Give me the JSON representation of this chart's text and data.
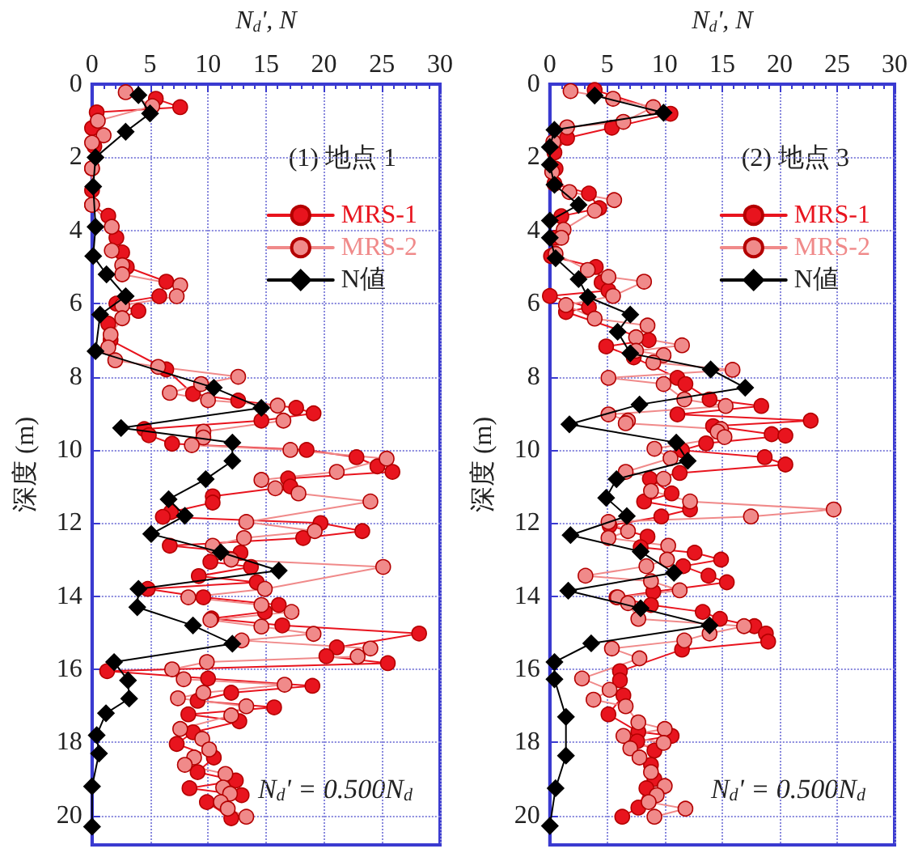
{
  "chart_data": [
    {
      "type": "line",
      "xlabel": "N$_{d}$', N",
      "ylabel": "深度 (m)",
      "legend_title": "(1) 地点 1",
      "annotations": [
        "N$_{d}$' = 0.500N$_{d}$"
      ],
      "xlim": [
        0,
        30
      ],
      "xticks": [
        0,
        5,
        10,
        15,
        20,
        25,
        30
      ],
      "ylim": [
        20.8,
        0
      ],
      "yticks": [
        0,
        2,
        4,
        6,
        8,
        10,
        12,
        14,
        16,
        18,
        20
      ],
      "grid": true,
      "legend": "top right",
      "line_style": "solid",
      "series": [
        {
          "name": "MRS-1",
          "color": "#e8141e",
          "marker": "circle",
          "x": [
            5.5,
            7.6,
            0.4,
            0,
            0.2,
            0,
            0,
            0,
            1.4,
            2.1,
            2.6,
            3.0,
            6.4,
            5.8,
            2.1,
            4.0,
            1.4,
            1.6,
            6.4,
            8.7,
            12.6,
            17.6,
            19.1,
            14.6,
            4.5,
            4.9,
            6.9,
            18.5,
            22.8,
            24.6,
            25.9,
            16.9,
            17.1,
            10.4,
            10.4,
            6.8,
            6.1,
            19.7,
            23.3,
            18.2,
            6.7,
            12.8,
            10.2,
            13.7,
            9.2,
            14.2,
            4.8,
            9.6,
            16.1,
            14.9,
            10.3,
            16.4,
            28.2,
            21.1,
            20.2,
            25.5,
            1.3,
            10.0,
            19.0,
            12.0,
            9.1,
            15.7,
            8.3,
            12.7,
            8.7,
            7.3,
            10.5,
            9.1,
            12.4,
            8.4,
            12.9,
            9.9,
            12.0
          ],
          "values": [
            0.4,
            0.63,
            0.77,
            1.2,
            1.7,
            2.3,
            2.9,
            3.3,
            3.6,
            4.2,
            4.6,
            5.0,
            5.4,
            5.8,
            6.0,
            6.2,
            6.55,
            7.0,
            7.8,
            8.47,
            8.65,
            8.85,
            9.0,
            9.2,
            9.43,
            9.6,
            9.83,
            10.0,
            10.2,
            10.45,
            10.6,
            10.78,
            11.0,
            11.27,
            11.44,
            11.7,
            11.83,
            12.0,
            12.22,
            12.41,
            12.62,
            12.81,
            13.06,
            13.2,
            13.45,
            13.62,
            13.8,
            14.03,
            14.24,
            14.43,
            14.61,
            14.8,
            15.02,
            15.4,
            15.64,
            15.83,
            16.05,
            16.25,
            16.45,
            16.64,
            16.86,
            17.04,
            17.23,
            17.42,
            17.72,
            18.04,
            18.41,
            18.81,
            19.04,
            19.25,
            19.44,
            19.63,
            20.07
          ]
        },
        {
          "name": "MRS-2",
          "color": "#f08a8a",
          "marker": "circle",
          "x": [
            2.9,
            5.2,
            0.5,
            1.0,
            0,
            0,
            0,
            1.7,
            1.7,
            2.6,
            2.6,
            7.6,
            7.3,
            2.6,
            2.6,
            1.6,
            1.4,
            2.0,
            5.7,
            12.6,
            9.4,
            6.7,
            10.0,
            16.0,
            16.5,
            9.6,
            9.6,
            8.6,
            17.1,
            25.4,
            21.1,
            14.6,
            15.8,
            17.8,
            24.0,
            13.3,
            19.2,
            13.1,
            10.4,
            12.0,
            25.1,
            14.9,
            8.3,
            14.6,
            17.2,
            10.2,
            14.6,
            19.1,
            12.9,
            24.0,
            22.9,
            9.9,
            6.9,
            7.9,
            16.6,
            9.6,
            7.4,
            13.3,
            12.0,
            7.6,
            9.5,
            10.1,
            8.8,
            8.0,
            11.5,
            11.3,
            11.9,
            11.1,
            11.7,
            13.3
          ],
          "values": [
            0.22,
            0.6,
            1.0,
            1.4,
            1.6,
            2.3,
            3.3,
            3.9,
            4.55,
            4.95,
            5.2,
            5.5,
            5.8,
            6.05,
            6.4,
            6.85,
            7.2,
            7.55,
            7.73,
            8.0,
            8.2,
            8.44,
            8.64,
            8.79,
            9.2,
            9.5,
            9.66,
            9.87,
            10.0,
            10.24,
            10.6,
            10.82,
            11.05,
            11.19,
            11.41,
            11.97,
            12.22,
            12.41,
            12.62,
            13.0,
            13.2,
            13.8,
            14.03,
            14.24,
            14.43,
            14.65,
            14.83,
            15.03,
            15.21,
            15.43,
            15.65,
            15.8,
            16.0,
            16.27,
            16.42,
            16.64,
            16.79,
            17.01,
            17.26,
            17.63,
            17.9,
            18.19,
            18.41,
            18.61,
            18.86,
            19.23,
            19.4,
            19.63,
            19.81,
            20.03
          ]
        },
        {
          "name": "N値",
          "color": "#000000",
          "marker": "diamond",
          "x": [
            4.0,
            5.0,
            2.9,
            0.3,
            0.1,
            0.3,
            0.1,
            1.25,
            2.9,
            0.7,
            0.3,
            10.5,
            14.6,
            2.5,
            12.1,
            12.1,
            9.8,
            6.6,
            8.0,
            5.1,
            11.1,
            16.1,
            4.0,
            3.9,
            8.7,
            12.1,
            1.9,
            3.1,
            3.2,
            1.2,
            0.4,
            0.6,
            0,
            0
          ],
          "values": [
            0.3,
            0.8,
            1.3,
            2.0,
            2.8,
            3.9,
            4.7,
            5.2,
            5.8,
            6.3,
            7.3,
            8.3,
            8.85,
            9.4,
            9.8,
            10.3,
            10.8,
            11.35,
            11.8,
            12.3,
            12.8,
            13.3,
            13.8,
            14.3,
            14.8,
            15.3,
            15.8,
            16.3,
            16.8,
            17.2,
            17.8,
            18.3,
            19.2,
            20.3
          ]
        }
      ]
    },
    {
      "type": "line",
      "xlabel": "N$_{d}$', N",
      "ylabel": "深度 (m)",
      "legend_title": "(2) 地点 3",
      "annotations": [
        "N$_{d}$' = 0.500N$_{d}$"
      ],
      "xlim": [
        0,
        30
      ],
      "xticks": [
        0,
        5,
        10,
        15,
        20,
        25,
        30
      ],
      "ylim": [
        20.8,
        0
      ],
      "yticks": [
        0,
        2,
        4,
        6,
        8,
        10,
        12,
        14,
        16,
        18,
        20
      ],
      "grid": true,
      "legend": "top right",
      "line_style": "solid",
      "series": [
        {
          "name": "MRS-1",
          "color": "#e8141e",
          "marker": "circle",
          "x": [
            3.9,
            10.5,
            5.4,
            1.5,
            0.4,
            0.5,
            0.4,
            3.4,
            4.3,
            1.0,
            0.5,
            0.1,
            4.0,
            4.5,
            5.1,
            0,
            3.4,
            1.4,
            8.6,
            4.9,
            7.3,
            11.1,
            11.8,
            13.9,
            18.4,
            11.1,
            22.7,
            14.2,
            19.3,
            20.5,
            13.6,
            11.5,
            18.7,
            20.5,
            11.3,
            8.7,
            10.6,
            8.2,
            12.2,
            9.7,
            5.2,
            8.5,
            7.9,
            12.6,
            14.9,
            11.6,
            13.8,
            15.4,
            9.0,
            5.8,
            8.8,
            13.3,
            14.8,
            17.8,
            18.8,
            19.0,
            11.5,
            6.1,
            6.1,
            6.4,
            5.1,
            7.7,
            10.6,
            7.6,
            9.1,
            8.8,
            9.1,
            8.4,
            7.7,
            6.3
          ],
          "values": [
            0.16,
            0.81,
            1.19,
            1.47,
            1.87,
            2.31,
            2.72,
            2.99,
            3.39,
            3.61,
            4.2,
            4.7,
            5.0,
            5.42,
            5.64,
            5.79,
            6.1,
            6.23,
            7.0,
            7.17,
            7.47,
            8.03,
            8.2,
            8.62,
            8.8,
            9.03,
            9.2,
            9.35,
            9.57,
            9.61,
            9.82,
            10.01,
            10.2,
            10.4,
            10.63,
            10.79,
            11.19,
            11.41,
            11.63,
            11.82,
            12.07,
            12.37,
            12.66,
            12.81,
            13.0,
            13.18,
            13.44,
            13.62,
            13.88,
            14.03,
            14.24,
            14.43,
            14.62,
            14.82,
            15.02,
            15.24,
            15.46,
            16.05,
            16.3,
            16.71,
            17.23,
            17.71,
            17.82,
            17.97,
            18.22,
            18.61,
            19.0,
            19.25,
            19.78,
            20.03
          ]
        },
        {
          "name": "MRS-2",
          "color": "#f08a8a",
          "marker": "circle",
          "x": [
            1.8,
            5.5,
            9.0,
            6.4,
            1.5,
            0.3,
            0.2,
            1.7,
            5.6,
            3.9,
            1.2,
            1.0,
            0.5,
            3.3,
            5.1,
            8.2,
            5.5,
            1.4,
            3.9,
            8.5,
            7.5,
            11.5,
            7.5,
            9.9,
            9.0,
            15.9,
            5.1,
            9.9,
            11.7,
            15.3,
            5.1,
            6.8,
            6.6,
            14.9,
            14.6,
            15.2,
            9.1,
            10.5,
            6.6,
            9.9,
            8.8,
            12.2,
            24.7,
            17.5,
            5.1,
            6.8,
            5.1,
            10.3,
            10.2,
            8.4,
            3.1,
            8.8,
            11.3,
            5.9,
            6.8,
            7.7,
            16.9,
            13.9,
            11.7,
            5.4,
            7.8,
            2.8,
            5.2,
            3.8,
            6.6,
            7.7,
            10.0,
            6.4,
            9.9,
            7.0,
            7.8,
            8.8,
            10.0,
            9.3,
            8.6,
            11.8,
            9.1
          ],
          "values": [
            0.19,
            0.4,
            0.63,
            1.03,
            1.18,
            1.58,
            2.4,
            2.95,
            3.17,
            3.46,
            3.98,
            4.2,
            4.64,
            5.08,
            5.27,
            5.4,
            5.79,
            6.04,
            6.41,
            6.6,
            6.92,
            7.14,
            7.29,
            7.41,
            7.61,
            7.81,
            8.03,
            8.2,
            8.62,
            8.8,
            9.03,
            9.2,
            9.27,
            9.43,
            9.5,
            9.65,
            9.97,
            10.23,
            10.6,
            10.79,
            11.12,
            11.41,
            11.63,
            11.82,
            11.97,
            12.22,
            12.41,
            12.62,
            13.0,
            13.18,
            13.44,
            13.59,
            13.84,
            14.03,
            14.19,
            14.62,
            14.82,
            15.02,
            15.21,
            15.43,
            15.7,
            16.25,
            16.56,
            16.83,
            17.01,
            17.45,
            17.63,
            17.82,
            18.01,
            18.16,
            18.41,
            18.81,
            19.19,
            19.44,
            19.63,
            19.81,
            20.03
          ]
        },
        {
          "name": "N値",
          "color": "#000000",
          "marker": "diamond",
          "x": [
            3.9,
            9.9,
            0.4,
            0,
            0,
            0.4,
            2.5,
            0,
            0,
            0.5,
            2.5,
            3.3,
            7.0,
            5.9,
            7.0,
            14.0,
            17.0,
            7.8,
            1.7,
            11.0,
            12.0,
            5.8,
            4.9,
            6.7,
            1.8,
            7.9,
            10.8,
            1.6,
            7.9,
            13.9,
            3.6,
            0.4,
            0.4,
            1.4,
            1.4,
            0.5,
            0
          ],
          "values": [
            0.31,
            0.78,
            1.25,
            1.72,
            2.2,
            2.75,
            3.3,
            3.73,
            4.2,
            4.76,
            5.33,
            5.82,
            6.3,
            6.77,
            7.36,
            7.8,
            8.3,
            8.76,
            9.3,
            9.8,
            10.3,
            10.8,
            11.31,
            11.81,
            12.33,
            12.78,
            13.36,
            13.85,
            14.33,
            14.8,
            15.29,
            15.8,
            16.27,
            17.3,
            18.36,
            19.25,
            20.28
          ]
        }
      ]
    }
  ]
}
